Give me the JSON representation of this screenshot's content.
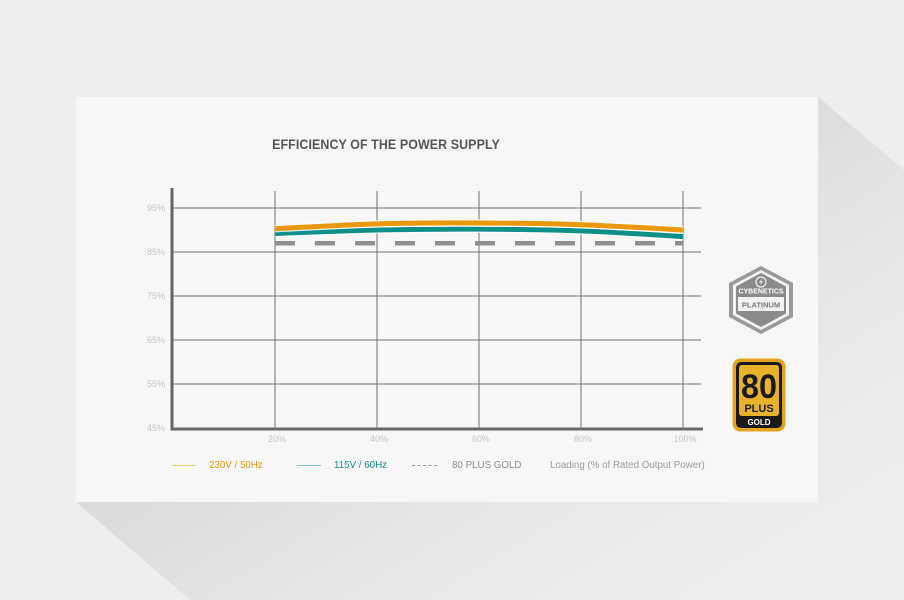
{
  "title": "EFFICIENCY OF THE POWER SUPPLY",
  "colors": {
    "series_230v": "#e8980a",
    "series_115v": "#0e8f8a",
    "gold_reference": "#8f8f8f",
    "grid": "#6f6f6f",
    "axis": "#666666"
  },
  "legend": {
    "items": [
      {
        "label": "230V / 50Hz",
        "color": "#e8980a",
        "style": "solid"
      },
      {
        "label": "115V / 60Hz",
        "color": "#0e8f8a",
        "style": "solid"
      },
      {
        "label": "80 PLUS GOLD",
        "color": "#9a9a9a",
        "style": "dashed"
      }
    ],
    "xlabel": "Loading (% of Rated Output Power)"
  },
  "badges": {
    "cybenetics": {
      "top": "CYBENETICS",
      "bottom": "PLATINUM"
    },
    "eighty_plus": {
      "number": "80",
      "plus": "PLUS",
      "tier": "GOLD"
    }
  },
  "chart_data": {
    "type": "line",
    "title": "EFFICIENCY OF THE POWER SUPPLY",
    "xlabel": "Loading (% of Rated Output Power)",
    "ylabel": "",
    "x": [
      20,
      40,
      60,
      80,
      100
    ],
    "x_tick_labels": [
      "20%",
      "40%",
      "60%",
      "80%",
      "100%"
    ],
    "y_tick_labels": [
      "95%",
      "85%",
      "75%",
      "65%",
      "55%",
      "45%"
    ],
    "ylim": [
      45,
      95
    ],
    "xlim": [
      0,
      100
    ],
    "grid": true,
    "legend_position": "bottom",
    "series": [
      {
        "name": "230V / 50Hz",
        "values": [
          90.3,
          91.4,
          91.6,
          91.2,
          90.0
        ],
        "style": "solid"
      },
      {
        "name": "115V / 60Hz",
        "values": [
          89.2,
          90.0,
          90.2,
          89.8,
          88.5
        ],
        "style": "solid"
      },
      {
        "name": "80 PLUS GOLD",
        "values": [
          87,
          87,
          87,
          87,
          87
        ],
        "style": "dashed"
      }
    ]
  }
}
